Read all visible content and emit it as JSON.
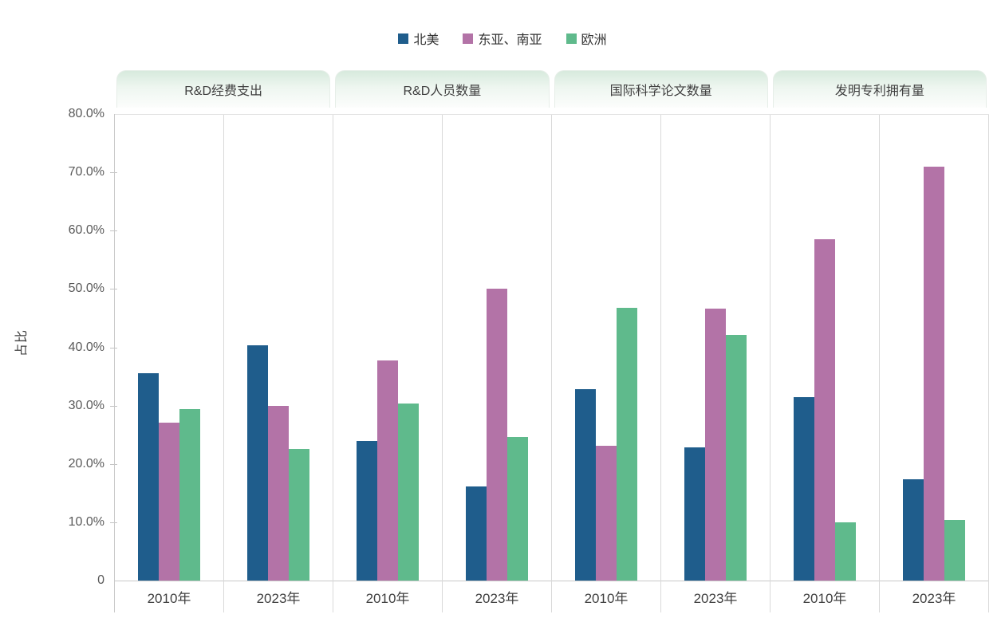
{
  "legend": {
    "items": [
      {
        "label": "北美",
        "color": "#1F5D8C"
      },
      {
        "label": "东亚、南亚",
        "color": "#B373A7"
      },
      {
        "label": "欧洲",
        "color": "#5FBA8C"
      }
    ]
  },
  "y_axis": {
    "title": "占比",
    "ticks": [
      "80.0%",
      "70.0%",
      "60.0%",
      "50.0%",
      "40.0%",
      "30.0%",
      "20.0%",
      "10.0%",
      "0"
    ],
    "max": 80
  },
  "chart_data": {
    "type": "bar",
    "title": "",
    "xlabel": "",
    "ylabel": "占比",
    "ylim": [
      0,
      80
    ],
    "grid": false,
    "legend_position": "top-center",
    "unit": "percent",
    "series_names": [
      "北美",
      "东亚、南亚",
      "欧洲"
    ],
    "series_colors": [
      "#1F5D8C",
      "#B373A7",
      "#5FBA8C"
    ],
    "group_labels": [
      "2010年",
      "2023年"
    ],
    "panels": [
      {
        "label": "R&D经费支出",
        "groups": [
          {
            "label": "2010年",
            "values": [
              35.5,
              27.1,
              29.4
            ]
          },
          {
            "label": "2023年",
            "values": [
              40.3,
              29.9,
              22.5
            ]
          }
        ]
      },
      {
        "label": "R&D人员数量",
        "groups": [
          {
            "label": "2010年",
            "values": [
              24.0,
              37.8,
              30.4
            ]
          },
          {
            "label": "2023年",
            "values": [
              16.2,
              50.0,
              24.6
            ]
          }
        ]
      },
      {
        "label": "国际科学论文数量",
        "groups": [
          {
            "label": "2010年",
            "values": [
              32.8,
              23.1,
              46.8
            ]
          },
          {
            "label": "2023年",
            "values": [
              22.9,
              46.6,
              42.1
            ]
          }
        ]
      },
      {
        "label": "发明专利拥有量",
        "groups": [
          {
            "label": "2010年",
            "values": [
              31.5,
              58.5,
              10.0
            ]
          },
          {
            "label": "2023年",
            "values": [
              17.4,
              71.0,
              10.4
            ]
          }
        ]
      }
    ]
  },
  "colors": {
    "axis_line": "#c8c8c8",
    "separator_line": "#d9d9d9",
    "tick_label": "#595959",
    "tab_background_top": "#d7eadd",
    "background": "#ffffff"
  }
}
